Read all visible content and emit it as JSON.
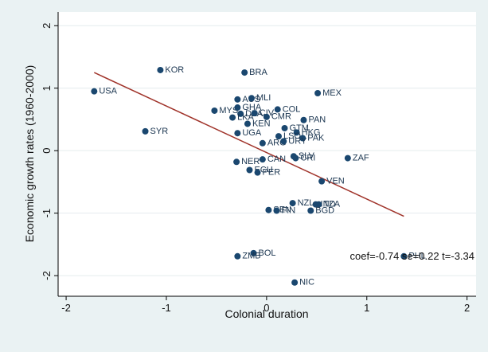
{
  "chart_data": {
    "type": "scatter",
    "x_label": "Colonial duration",
    "y_label": "Economic growth rates (1960-2000)",
    "annotation": "coef=-0.74 se=0.22  t=-3.34",
    "labels": [
      "USA",
      "KOR",
      "BRA",
      "SYR",
      "MEX",
      "AUS",
      "MLI",
      "MYS",
      "GHA",
      "DZA",
      "CIV",
      "LKA",
      "KEN",
      "COL",
      "CMR",
      "PAN",
      "GTM",
      "HKG",
      "PAK",
      "UGA",
      "ARG",
      "LSO",
      "URY",
      "SLV",
      "CRI",
      "ZAF",
      "NER",
      "CAN",
      "ECU",
      "PER",
      "VEN",
      "NZL",
      "IND",
      "TZA",
      "SEN",
      "FIN",
      "BGD",
      "BOL",
      "ZMB",
      "PHL",
      "NIC"
    ],
    "x": [
      -1.72,
      -1.06,
      -0.22,
      -1.21,
      0.51,
      -0.29,
      -0.15,
      -0.52,
      -0.29,
      -0.26,
      -0.12,
      -0.34,
      -0.19,
      0.11,
      0.0,
      0.37,
      0.18,
      0.3,
      0.36,
      -0.29,
      -0.04,
      0.12,
      0.17,
      0.27,
      0.29,
      0.81,
      -0.3,
      -0.04,
      -0.17,
      -0.09,
      0.55,
      0.26,
      0.49,
      0.52,
      0.02,
      0.1,
      0.44,
      -0.13,
      -0.29,
      1.37,
      0.28
    ],
    "values": [
      0.95,
      1.29,
      1.25,
      0.31,
      0.92,
      0.82,
      0.84,
      0.64,
      0.69,
      0.59,
      0.6,
      0.53,
      0.43,
      0.66,
      0.54,
      0.49,
      0.36,
      0.29,
      0.2,
      0.28,
      0.12,
      0.23,
      0.15,
      -0.09,
      -0.12,
      -0.12,
      -0.18,
      -0.14,
      -0.31,
      -0.35,
      -0.49,
      -0.84,
      -0.86,
      -0.86,
      -0.95,
      -0.96,
      -0.96,
      -1.64,
      -1.69,
      -1.69,
      -2.11
    ],
    "color": "#1a476f",
    "fit_line": {
      "x": [
        -1.72,
        1.37
      ],
      "y": [
        1.25,
        -1.05
      ],
      "color": "#a0332a"
    },
    "xlim": [
      -2.08,
      2.09
    ],
    "ylim": [
      -2.33,
      2.22
    ],
    "xticks": [
      -2,
      -1,
      0,
      1,
      2
    ],
    "yticks": [
      -2,
      -1,
      0,
      1,
      2
    ],
    "grid": true
  }
}
